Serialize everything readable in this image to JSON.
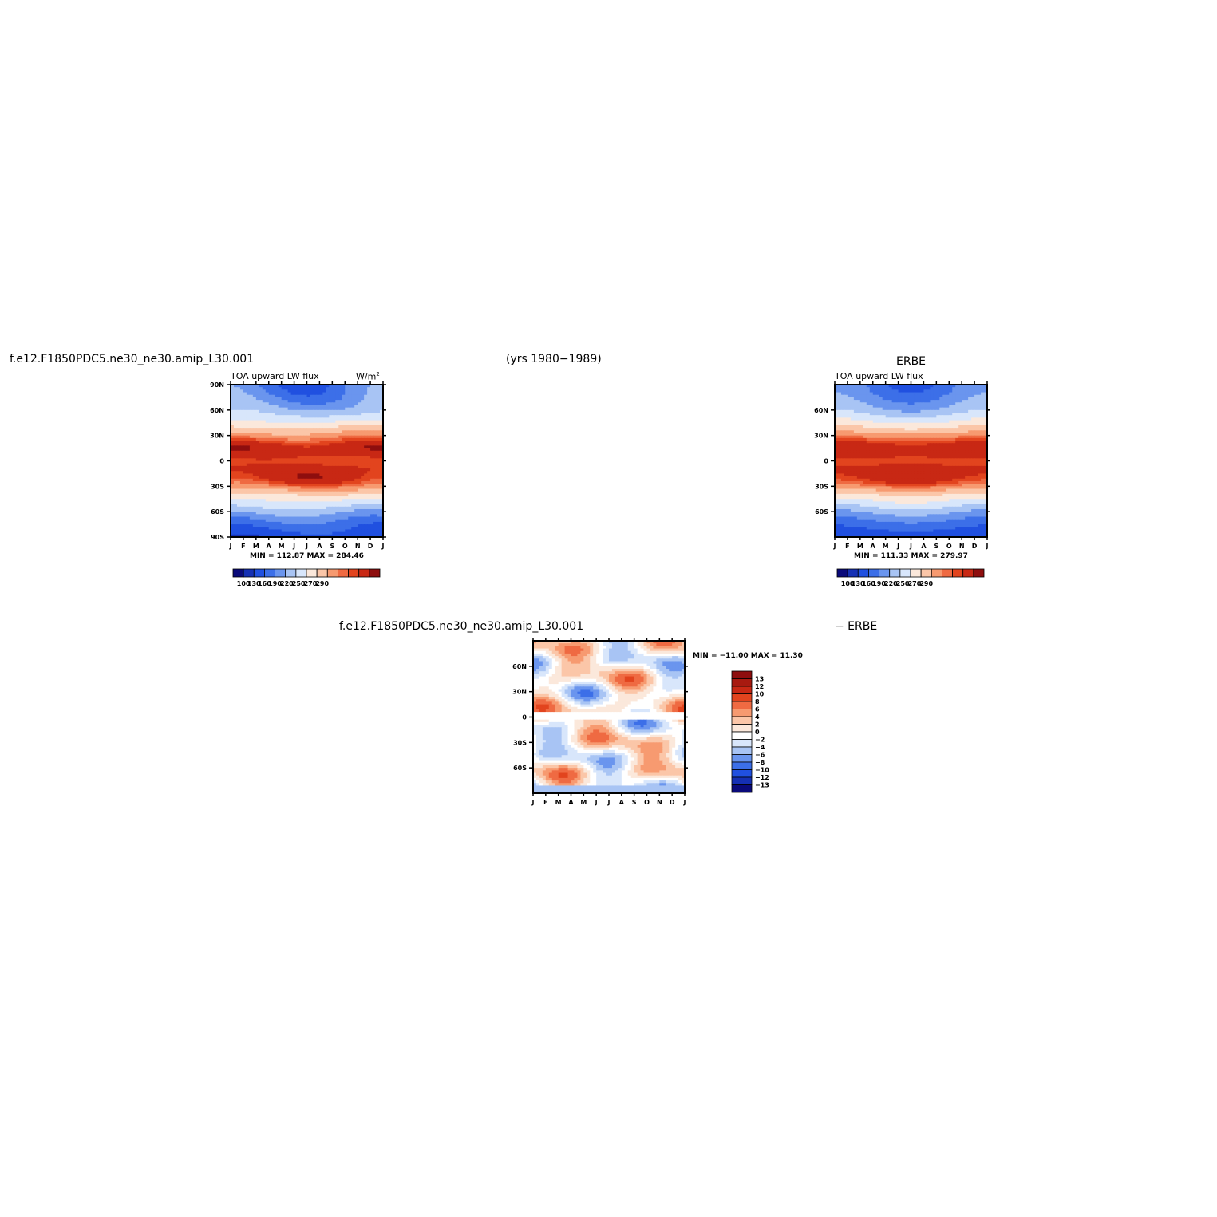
{
  "header": {
    "case_name": "f.e12.F1850PDC5.ne30_ne30.amip_L30.001",
    "years": "(yrs 1980−1989)",
    "obs_name": "ERBE"
  },
  "colors": {
    "scale_13": [
      "#0a0a7a",
      "#1530b4",
      "#2050e0",
      "#3c6fe8",
      "#6a95ee",
      "#a8c4f4",
      "#d8e6fb",
      "#fbe8db",
      "#fbc6a8",
      "#f79a70",
      "#ef6a42",
      "#e2441e",
      "#c82814",
      "#8e0e0e"
    ],
    "diff_scale_16": [
      "#0a0a7a",
      "#1530b4",
      "#2050e0",
      "#3c6fe8",
      "#6a95ee",
      "#a8c4f4",
      "#d8e6fb",
      "#ffffff",
      "#fbe8db",
      "#fbc6a8",
      "#f79a70",
      "#ef6a42",
      "#e2441e",
      "#c82814",
      "#a81a10",
      "#8e0e0e"
    ]
  },
  "chart_data": [
    {
      "type": "heatmap",
      "name_text": "f.e12.F1850PDC5.ne30_ne30.amip_L30.001",
      "title": "TOA upward LW flux",
      "units": "W/m",
      "units_sup": "2",
      "x_ticklabels": [
        "J",
        "F",
        "M",
        "A",
        "M",
        "J",
        "J",
        "A",
        "S",
        "O",
        "N",
        "D",
        "J"
      ],
      "y_ticklabels": [
        "90N",
        "60N",
        "30N",
        "0",
        "30S",
        "60S",
        "90S"
      ],
      "ylim": [
        -90,
        90
      ],
      "min_max_text": "MIN = 112.87 MAX = 284.46",
      "min": 112.87,
      "max": 284.46,
      "colorbar_labels": [
        "100",
        "130",
        "160",
        "190",
        "220",
        "250",
        "270",
        "290"
      ]
    },
    {
      "type": "heatmap",
      "name_text": "ERBE",
      "title": "TOA upward LW flux",
      "x_ticklabels": [
        "J",
        "F",
        "M",
        "A",
        "M",
        "J",
        "J",
        "A",
        "S",
        "O",
        "N",
        "D",
        "J"
      ],
      "y_ticklabels": [
        "60N",
        "30N",
        "0",
        "30S",
        "60S"
      ],
      "ylim": [
        -90,
        90
      ],
      "min_max_text": "MIN = 111.33 MAX = 279.97",
      "min": 111.33,
      "max": 279.97,
      "colorbar_labels": [
        "100",
        "130",
        "160",
        "190",
        "220",
        "250",
        "270",
        "290"
      ]
    },
    {
      "type": "heatmap",
      "name_text": "f.e12.F1850PDC5.ne30_ne30.amip_L30.001",
      "name_suffix": "− ERBE",
      "x_ticklabels": [
        "J",
        "F",
        "M",
        "A",
        "M",
        "J",
        "J",
        "A",
        "S",
        "O",
        "N",
        "D",
        "J"
      ],
      "y_ticklabels": [
        "60N",
        "30N",
        "0",
        "30S",
        "60S"
      ],
      "ylim": [
        -90,
        90
      ],
      "min_max_text": "MIN = −11.00 MAX =  11.30",
      "min": -11.0,
      "max": 11.3,
      "colorbar_labels": [
        "13",
        "12",
        "10",
        "8",
        "6",
        "4",
        "2",
        "0",
        "−2",
        "−4",
        "−6",
        "−8",
        "−10",
        "−12",
        "−13"
      ]
    }
  ]
}
